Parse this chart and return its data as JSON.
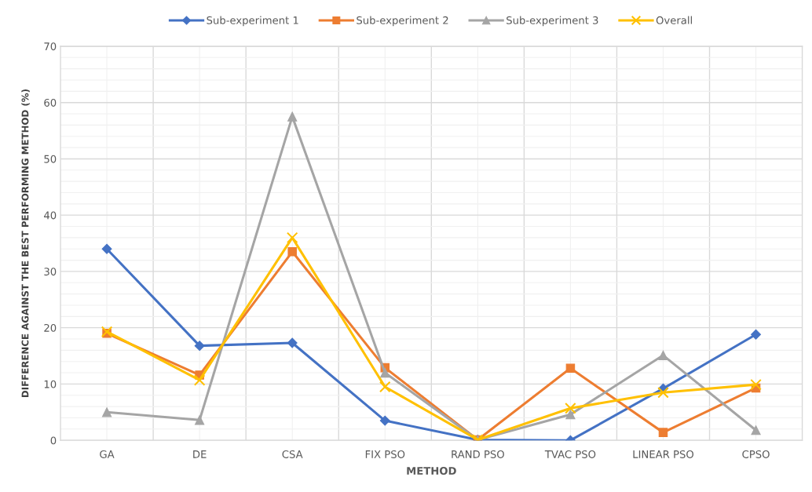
{
  "chart_data": {
    "type": "line",
    "xlabel": "METHOD",
    "ylabel": "DIFFERENCE AGAINST THE BEST PERFORMING METHOD (%)",
    "categories": [
      "GA",
      "DE",
      "CSA",
      "FIX PSO",
      "RAND PSO",
      "TVAC PSO",
      "LINEAR PSO",
      "CPSO"
    ],
    "series": [
      {
        "name": "Sub-experiment 1",
        "color": "#4472c4",
        "marker": "diamond",
        "values": [
          34.0,
          16.8,
          17.3,
          3.5,
          0.1,
          0.0,
          9.2,
          18.8
        ]
      },
      {
        "name": "Sub-experiment 2",
        "color": "#ed7d31",
        "marker": "square",
        "values": [
          19.0,
          11.6,
          33.5,
          12.9,
          0.1,
          12.8,
          1.4,
          9.3
        ]
      },
      {
        "name": "Sub-experiment 3",
        "color": "#a5a5a5",
        "marker": "triangle",
        "values": [
          5.0,
          3.6,
          57.5,
          12.0,
          0.1,
          4.6,
          15.1,
          1.8
        ]
      },
      {
        "name": "Overall",
        "color": "#ffc000",
        "marker": "cross",
        "values": [
          19.3,
          10.7,
          36.0,
          9.5,
          0.1,
          5.7,
          8.5,
          9.9
        ]
      }
    ],
    "ylim": [
      0,
      70
    ],
    "yticks": [
      0,
      {
        "value": 2,
        "label": null
      },
      {
        "value": 4,
        "label": null
      },
      {
        "value": 6,
        "label": null
      },
      {
        "value": 8,
        "label": null
      },
      10,
      {
        "value": 12,
        "label": null
      },
      {
        "value": 14,
        "label": null
      },
      {
        "value": 16,
        "label": null
      },
      {
        "value": 18,
        "label": null
      },
      20,
      {
        "value": 22,
        "label": null
      },
      {
        "value": 24,
        "label": null
      },
      {
        "value": 26,
        "label": null
      },
      {
        "value": 28,
        "label": null
      },
      30,
      {
        "value": 32,
        "label": null
      },
      {
        "value": 34,
        "label": null
      },
      {
        "value": 36,
        "label": null
      },
      {
        "value": 38,
        "label": null
      },
      40,
      {
        "value": 42,
        "label": null
      },
      {
        "value": 44,
        "label": null
      },
      {
        "value": 46,
        "label": null
      },
      {
        "value": 48,
        "label": null
      },
      50,
      {
        "value": 52,
        "label": null
      },
      {
        "value": 54,
        "label": null
      },
      {
        "value": 56,
        "label": null
      },
      {
        "value": 58,
        "label": null
      },
      60,
      {
        "value": 62,
        "label": null
      },
      {
        "value": 64,
        "label": null
      },
      {
        "value": 66,
        "label": null
      },
      {
        "value": 68,
        "label": null
      },
      70
    ],
    "grid": true,
    "legend": "top",
    "line_style": "solid"
  }
}
